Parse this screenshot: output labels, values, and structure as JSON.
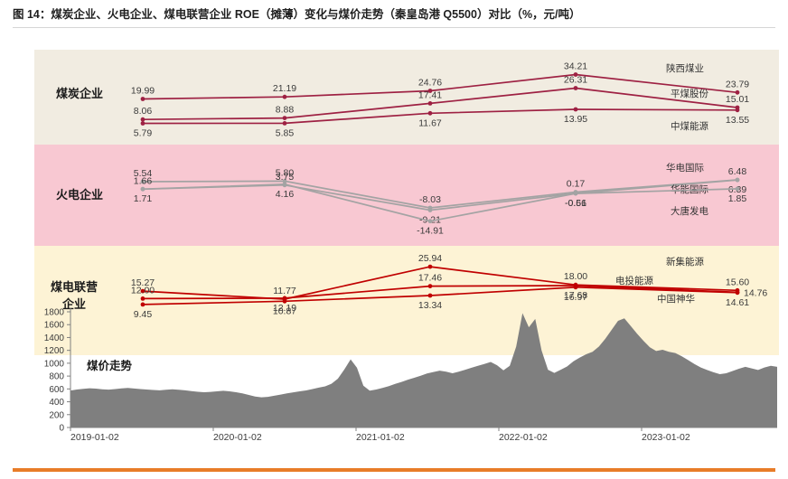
{
  "header": {
    "title": "图 14：煤炭企业、火电企业、煤电联营企业 ROE（摊薄）变化与煤价走势（秦皇岛港 Q5500）对比（%，元/吨）"
  },
  "colors": {
    "accent_orange": "#e87c28",
    "coal_line": "#9e2143",
    "thermal_line": "#a3a3a3",
    "jv_line": "#c00000",
    "price_fill": "#7f7f7f",
    "band_coal_bg": "#f1ece1",
    "band_thermal_bg": "#f8c8d2",
    "band_jv_bg": "#fdf3d5",
    "axis_color": "#808080",
    "label_color": "#3b3b3b"
  },
  "chart_data": {
    "type": "line",
    "note": "three stacked ROE line-chart bands plus coal-price area chart",
    "groups": [
      {
        "label": "煤炭企业",
        "series": [
          {
            "name": "陕西煤业",
            "values": [
              19.99,
              21.19,
              24.76,
              34.21,
              23.79
            ]
          },
          {
            "name": "平煤股份",
            "values": [
              8.06,
              8.88,
              17.41,
              26.31,
              15.01
            ]
          },
          {
            "name": "中煤能源",
            "values": [
              5.79,
              5.85,
              11.67,
              13.95,
              13.55
            ]
          }
        ]
      },
      {
        "label": "火电企业",
        "series": [
          {
            "name": "华电国际",
            "values": [
              5.54,
              5.8,
              -8.03,
              0.17,
              6.48
            ]
          },
          {
            "name": "华能国际",
            "values": [
              1.66,
              3.75,
              -9.21,
              -0.56,
              6.39
            ]
          },
          {
            "name": "大唐发电",
            "values": [
              1.71,
              4.16,
              -14.91,
              -0.61,
              1.85
            ]
          }
        ]
      },
      {
        "label": "煤电联营企业",
        "series": [
          {
            "name": "新集能源",
            "values": [
              15.27,
              11.77,
              25.94,
              18.0,
              15.6
            ]
          },
          {
            "name": "电投能源",
            "values": [
              12.0,
              12.19,
              17.46,
              17.68,
              14.76
            ]
          },
          {
            "name": "中国神华",
            "values": [
              9.45,
              10.87,
              13.34,
              16.97,
              14.61
            ]
          }
        ]
      }
    ],
    "price": {
      "label": "煤价走势",
      "ylim": [
        0,
        1800
      ],
      "y_ticks": [
        0,
        200,
        400,
        600,
        800,
        1000,
        1200,
        1400,
        1600,
        1800
      ],
      "x_ticks": [
        "2019-01-02",
        "2020-01-02",
        "2021-01-02",
        "2022-01-02",
        "2023-01-02"
      ],
      "values": [
        575,
        590,
        601,
        611,
        604,
        595,
        589,
        597,
        607,
        614,
        606,
        597,
        590,
        584,
        578,
        586,
        593,
        588,
        578,
        566,
        556,
        549,
        554,
        562,
        571,
        563,
        549,
        530,
        506,
        481,
        469,
        477,
        494,
        512,
        530,
        547,
        562,
        577,
        597,
        620,
        640,
        680,
        760,
        900,
        1060,
        930,
        650,
        572,
        590,
        614,
        644,
        679,
        709,
        744,
        774,
        804,
        839,
        864,
        884,
        869,
        844,
        869,
        899,
        929,
        959,
        989,
        1019,
        969,
        889,
        959,
        1259,
        1779,
        1559,
        1689,
        1199,
        899,
        849,
        899,
        949,
        1029,
        1089,
        1139,
        1179,
        1259,
        1379,
        1519,
        1659,
        1699,
        1579,
        1459,
        1349,
        1249,
        1189,
        1209,
        1179,
        1159,
        1109,
        1049,
        989,
        934,
        894,
        859,
        829,
        844,
        879,
        914,
        944,
        919,
        894,
        934,
        959,
        944
      ]
    }
  }
}
